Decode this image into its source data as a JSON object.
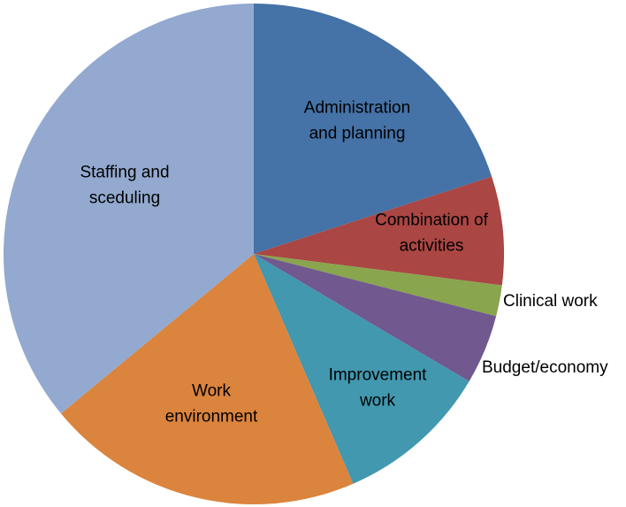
{
  "chart_data": {
    "type": "pie",
    "start": "12 o'clock",
    "direction": "clockwise",
    "slices": [
      {
        "label_lines": [
          "Administration",
          "and planning"
        ],
        "value": 20.0,
        "color": "#4572A7"
      },
      {
        "label_lines": [
          "Combination of",
          "activities"
        ],
        "value": 7.0,
        "color": "#AA4643"
      },
      {
        "label_lines": [
          "Clinical work"
        ],
        "value": 2.0,
        "color": "#89A54E"
      },
      {
        "label_lines": [
          "Budget/economy"
        ],
        "value": 4.5,
        "color": "#71588F"
      },
      {
        "label_lines": [
          "Improvement",
          "work"
        ],
        "value": 10.0,
        "color": "#4198AF"
      },
      {
        "label_lines": [
          "Work",
          "environment"
        ],
        "value": 20.5,
        "color": "#DB843D"
      },
      {
        "label_lines": [
          "Staffing and",
          "sceduling"
        ],
        "value": 36.0,
        "color": "#93A9CF"
      }
    ]
  }
}
